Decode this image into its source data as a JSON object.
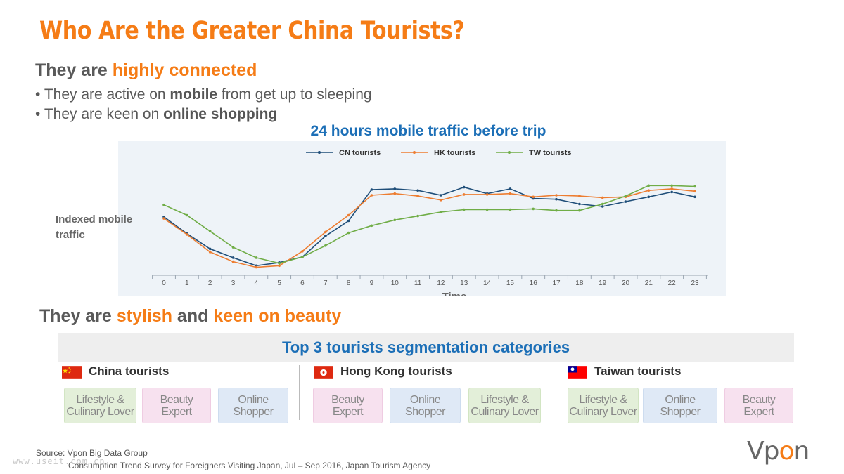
{
  "slide": {
    "title": "Who Are the Greater China Tourists?",
    "section1": {
      "prefix": "They are ",
      "accent": "highly connected"
    },
    "bullets": [
      {
        "pre": "They are active on ",
        "bold": "mobile",
        "post": " from get up to sleeping"
      },
      {
        "pre": "They are keen on ",
        "bold": "online shopping",
        "post": ""
      }
    ],
    "section2": {
      "prefix": "They are ",
      "accent1": "stylish",
      "middle": " and ",
      "accent2": "keen on beauty"
    },
    "segmentation_title": "Top 3 tourists segmentation categories",
    "groups": [
      {
        "name": "China tourists",
        "flag": "china-flag-icon",
        "tags": [
          "Lifestyle &\nCulinary Lover",
          "Beauty\nExpert",
          "Online\nShopper"
        ]
      },
      {
        "name": "Hong Kong tourists",
        "flag": "hong-kong-flag-icon",
        "tags": [
          "Beauty\nExpert",
          "Online\nShopper",
          "Lifestyle &\nCulinary Lover"
        ]
      },
      {
        "name": "Taiwan tourists",
        "flag": "taiwan-flag-icon",
        "tags": [
          "Lifestyle &\nCulinary Lover",
          "Online\nShopper",
          "Beauty\nExpert"
        ]
      }
    ],
    "source_line1": "Source: Vpon Big Data Group",
    "source_line2": "Consumption Trend Survey for Foreigners Visiting Japan, Jul – Sep 2016, Japan Tourism Agency",
    "watermark": "www.useit.com.cn",
    "logo": {
      "part1": "Vp",
      "part2": "o",
      "part3": "n"
    }
  },
  "colors": {
    "accent": "#f57c16",
    "blue": "#1c6fb7",
    "cn": "#1f4e79",
    "hk": "#ed7d31",
    "tw": "#70ad47",
    "tag_green": "#e3efd9",
    "tag_pink": "#f7e1ef",
    "tag_blue": "#dfe9f6"
  },
  "chart_data": {
    "type": "line",
    "title": "24 hours mobile traffic before trip",
    "xlabel": "Time",
    "ylabel": "Indexed mobile traffic",
    "x": [
      0,
      1,
      2,
      3,
      4,
      5,
      6,
      7,
      8,
      9,
      10,
      11,
      12,
      13,
      14,
      15,
      16,
      17,
      18,
      19,
      20,
      21,
      22,
      23
    ],
    "ylim": [
      0,
      150
    ],
    "legend_position": "top-center",
    "y_tick_labels_visible": false,
    "series": [
      {
        "name": "CN tourists",
        "color": "#1f4e79",
        "values": [
          73,
          52,
          33,
          22,
          12,
          16,
          23,
          49,
          68,
          107,
          108,
          106,
          100,
          110,
          102,
          108,
          96,
          95,
          89,
          86,
          92,
          98,
          104,
          98
        ]
      },
      {
        "name": "HK tourists",
        "color": "#ed7d31",
        "values": [
          71,
          51,
          29,
          17,
          10,
          12,
          30,
          54,
          75,
          100,
          102,
          99,
          94,
          101,
          101,
          102,
          98,
          100,
          99,
          97,
          98,
          106,
          108,
          105
        ]
      },
      {
        "name": "TW tourists",
        "color": "#70ad47",
        "values": [
          88,
          75,
          55,
          35,
          22,
          15,
          23,
          37,
          53,
          62,
          69,
          74,
          79,
          82,
          82,
          82,
          83,
          81,
          81,
          89,
          99,
          112,
          112,
          111
        ]
      }
    ]
  }
}
